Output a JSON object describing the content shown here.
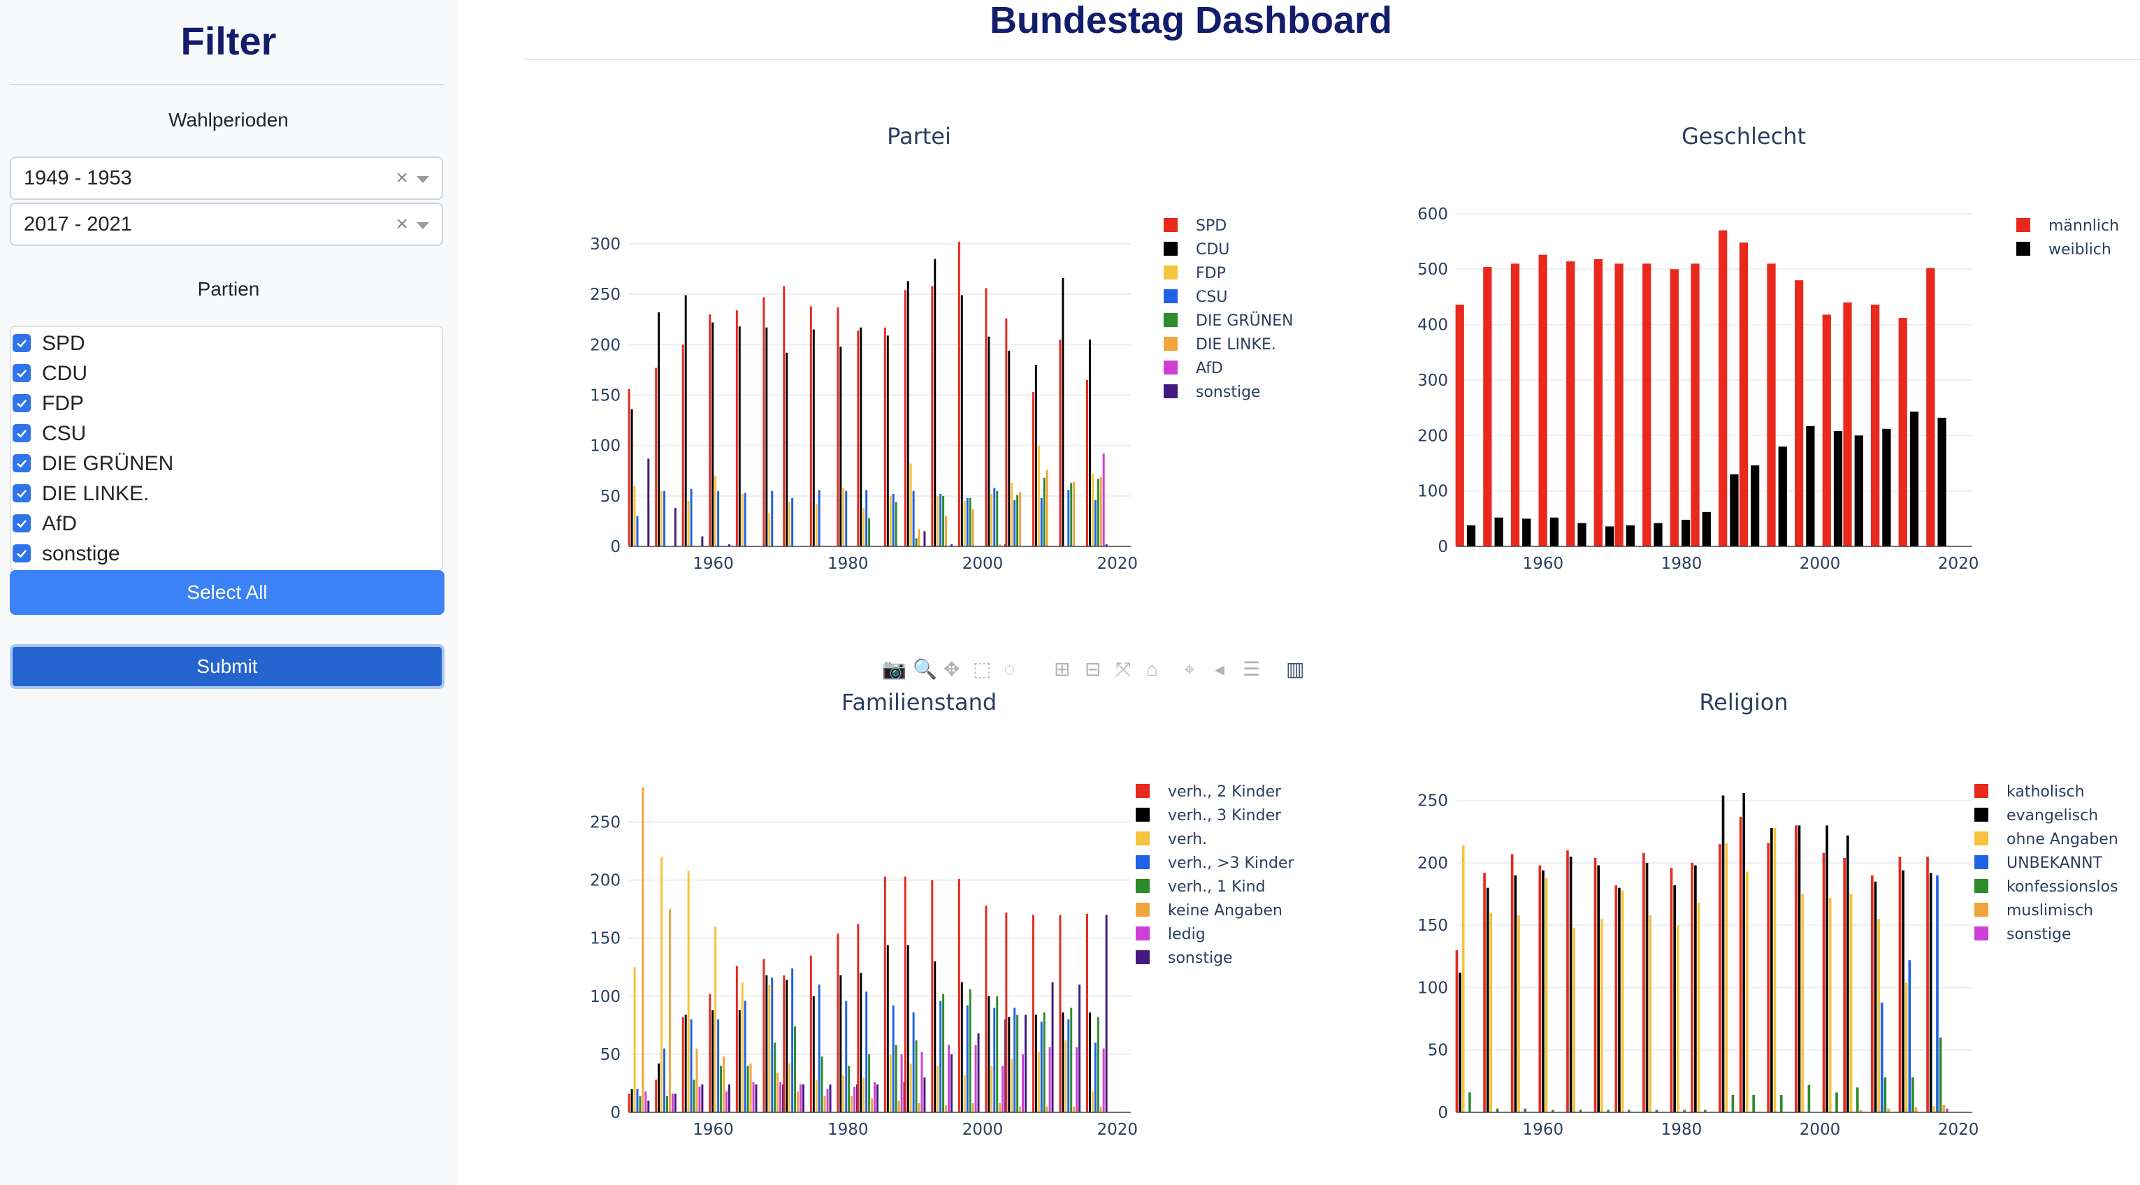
{
  "sidebar": {
    "title": "Filter",
    "wahl_label": "Wahlperioden",
    "periods": [
      {
        "value": "1949 - 1953",
        "clear": "×"
      },
      {
        "value": "2017 - 2021",
        "clear": "×"
      }
    ],
    "parties_label": "Partien",
    "parties": [
      "SPD",
      "CDU",
      "FDP",
      "CSU",
      "DIE GRÜNEN",
      "DIE LINKE.",
      "AfD",
      "sonstige"
    ],
    "select_all": "Select All",
    "submit": "Submit"
  },
  "header": {
    "title": "Bundestag Dashboard"
  },
  "modebar_icons": [
    "camera-icon",
    "zoom-icon",
    "pan-icon",
    "box-select-icon",
    "lasso-icon",
    "zoom-in-icon",
    "zoom-out-icon",
    "autoscale-icon",
    "reset-axes-icon",
    "spike-lines-icon",
    "hover-closest-icon",
    "hover-compare-icon",
    "plotly-logo-icon"
  ],
  "chart_data": [
    {
      "id": "partei",
      "type": "bar",
      "title": "Partei",
      "x": [
        1949,
        1953,
        1957,
        1961,
        1965,
        1969,
        1972,
        1976,
        1980,
        1983,
        1987,
        1990,
        1994,
        1998,
        2002,
        2005,
        2009,
        2013,
        2017
      ],
      "xticks": [
        1960,
        1980,
        2000,
        2020
      ],
      "ylim": [
        0,
        320
      ],
      "yticks": [
        0,
        50,
        100,
        150,
        200,
        250,
        300
      ],
      "legend_position": "right",
      "series": [
        {
          "name": "SPD",
          "color": "#e8291c",
          "values": [
            156,
            177,
            200,
            230,
            234,
            247,
            258,
            238,
            237,
            214,
            217,
            254,
            258,
            302,
            256,
            226,
            153,
            205,
            165
          ]
        },
        {
          "name": "CDU",
          "color": "#000000",
          "values": [
            136,
            232,
            249,
            222,
            218,
            217,
            192,
            215,
            198,
            217,
            209,
            263,
            285,
            249,
            208,
            194,
            180,
            266,
            205
          ]
        },
        {
          "name": "FDP",
          "color": "#f5c33c",
          "values": [
            60,
            55,
            45,
            70,
            52,
            33,
            44,
            42,
            58,
            38,
            50,
            82,
            50,
            45,
            52,
            63,
            100,
            0,
            72
          ]
        },
        {
          "name": "CSU",
          "color": "#1f62e8",
          "values": [
            30,
            55,
            57,
            55,
            53,
            55,
            48,
            56,
            55,
            56,
            52,
            55,
            52,
            48,
            58,
            46,
            48,
            56,
            46
          ]
        },
        {
          "name": "DIE GRÜNEN",
          "color": "#2e8b2a",
          "values": [
            0,
            0,
            0,
            0,
            0,
            0,
            0,
            0,
            0,
            28,
            44,
            8,
            50,
            48,
            55,
            51,
            68,
            63,
            67
          ]
        },
        {
          "name": "DIE LINKE.",
          "color": "#f0a53c",
          "values": [
            0,
            0,
            0,
            0,
            0,
            0,
            0,
            0,
            0,
            0,
            0,
            17,
            30,
            37,
            2,
            54,
            76,
            64,
            69
          ]
        },
        {
          "name": "AfD",
          "color": "#cf3fd6",
          "values": [
            0,
            0,
            0,
            0,
            0,
            0,
            0,
            0,
            0,
            0,
            0,
            0,
            0,
            0,
            0,
            0,
            0,
            0,
            92
          ]
        },
        {
          "name": "sonstige",
          "color": "#45197f",
          "values": [
            87,
            38,
            10,
            2,
            0,
            0,
            0,
            0,
            0,
            0,
            0,
            15,
            2,
            0,
            2,
            0,
            0,
            0,
            2
          ]
        }
      ]
    },
    {
      "id": "geschlecht",
      "type": "bar",
      "title": "Geschlecht",
      "x": [
        1949,
        1953,
        1957,
        1961,
        1965,
        1969,
        1972,
        1976,
        1980,
        1983,
        1987,
        1990,
        1994,
        1998,
        2002,
        2005,
        2009,
        2013,
        2017
      ],
      "xticks": [
        1960,
        1980,
        2000,
        2020
      ],
      "ylim": [
        0,
        620
      ],
      "yticks": [
        0,
        100,
        200,
        300,
        400,
        500,
        600
      ],
      "legend_position": "right",
      "series": [
        {
          "name": "männlich",
          "color": "#e8291c",
          "values": [
            436,
            504,
            510,
            526,
            514,
            518,
            510,
            510,
            500,
            510,
            570,
            548,
            510,
            480,
            418,
            440,
            436,
            412,
            502
          ]
        },
        {
          "name": "weiblich",
          "color": "#000000",
          "values": [
            38,
            52,
            50,
            52,
            42,
            36,
            38,
            42,
            48,
            62,
            130,
            146,
            180,
            217,
            208,
            200,
            212,
            243,
            232
          ]
        }
      ]
    },
    {
      "id": "familienstand",
      "type": "bar",
      "title": "Familienstand",
      "x": [
        1949,
        1953,
        1957,
        1961,
        1965,
        1969,
        1972,
        1976,
        1980,
        1983,
        1987,
        1990,
        1994,
        1998,
        2002,
        2005,
        2009,
        2013,
        2017
      ],
      "xticks": [
        1960,
        1980,
        2000,
        2020
      ],
      "ylim": [
        0,
        290
      ],
      "yticks": [
        0,
        50,
        100,
        150,
        200,
        250
      ],
      "legend_position": "right",
      "series": [
        {
          "name": "verh., 2 Kinder",
          "color": "#e8291c",
          "values": [
            16,
            28,
            82,
            102,
            126,
            132,
            118,
            135,
            154,
            162,
            203,
            203,
            200,
            201,
            178,
            172,
            170,
            170,
            171
          ]
        },
        {
          "name": "verh., 3 Kinder",
          "color": "#000000",
          "values": [
            20,
            42,
            84,
            88,
            88,
            118,
            114,
            100,
            118,
            120,
            144,
            144,
            130,
            112,
            100,
            82,
            84,
            86,
            86
          ]
        },
        {
          "name": "verh.",
          "color": "#f5c33c",
          "values": [
            125,
            220,
            208,
            160,
            112,
            110,
            42,
            28,
            32,
            30,
            50,
            42,
            40,
            32,
            40,
            46,
            52,
            62,
            18
          ]
        },
        {
          "name": "verh., >3 Kinder",
          "color": "#1f62e8",
          "values": [
            20,
            55,
            80,
            80,
            96,
            116,
            124,
            110,
            96,
            104,
            92,
            86,
            96,
            92,
            90,
            90,
            78,
            80,
            60
          ]
        },
        {
          "name": "verh., 1 Kind",
          "color": "#2e8b2a",
          "values": [
            14,
            14,
            28,
            40,
            40,
            60,
            74,
            48,
            40,
            50,
            58,
            62,
            102,
            106,
            100,
            84,
            86,
            90,
            82
          ]
        },
        {
          "name": "keine Angaben",
          "color": "#f0a53c",
          "values": [
            280,
            175,
            55,
            48,
            42,
            34,
            18,
            14,
            14,
            12,
            10,
            8,
            6,
            8,
            8,
            5,
            5,
            5,
            5
          ]
        },
        {
          "name": "ledig",
          "color": "#cf3fd6",
          "values": [
            18,
            16,
            22,
            18,
            26,
            26,
            24,
            20,
            22,
            26,
            50,
            52,
            58,
            58,
            40,
            50,
            56,
            56,
            55
          ]
        },
        {
          "name": "sonstige",
          "color": "#45197f",
          "values": [
            10,
            16,
            24,
            24,
            24,
            24,
            24,
            24,
            24,
            24,
            26,
            30,
            50,
            68,
            80,
            84,
            112,
            110,
            170
          ]
        }
      ]
    },
    {
      "id": "religion",
      "type": "bar",
      "title": "Religion",
      "x": [
        1949,
        1953,
        1957,
        1961,
        1965,
        1969,
        1972,
        1976,
        1980,
        1983,
        1987,
        1990,
        1994,
        1998,
        2002,
        2005,
        2009,
        2013,
        2017
      ],
      "xticks": [
        1960,
        1980,
        2000,
        2020
      ],
      "ylim": [
        0,
        270
      ],
      "yticks": [
        0,
        50,
        100,
        150,
        200,
        250
      ],
      "legend_position": "right",
      "series": [
        {
          "name": "katholisch",
          "color": "#e8291c",
          "values": [
            130,
            192,
            207,
            198,
            210,
            204,
            182,
            208,
            196,
            200,
            215,
            237,
            216,
            230,
            208,
            204,
            190,
            205,
            205
          ]
        },
        {
          "name": "evangelisch",
          "color": "#000000",
          "values": [
            112,
            180,
            190,
            194,
            205,
            198,
            180,
            200,
            182,
            198,
            254,
            256,
            228,
            230,
            230,
            222,
            185,
            194,
            192
          ]
        },
        {
          "name": "ohne Angaben",
          "color": "#f5c33c",
          "values": [
            214,
            160,
            158,
            188,
            148,
            155,
            178,
            158,
            150,
            168,
            216,
            193,
            228,
            175,
            172,
            175,
            155,
            104,
            5
          ]
        },
        {
          "name": "UNBEKANNT",
          "color": "#1f62e8",
          "values": [
            0,
            0,
            0,
            0,
            0,
            0,
            0,
            0,
            0,
            0,
            0,
            0,
            0,
            0,
            0,
            0,
            88,
            122,
            190
          ]
        },
        {
          "name": "konfessionslos",
          "color": "#2e8b2a",
          "values": [
            16,
            3,
            3,
            2,
            2,
            2,
            2,
            2,
            2,
            2,
            14,
            14,
            14,
            22,
            16,
            20,
            28,
            28,
            60
          ]
        },
        {
          "name": "muslimisch",
          "color": "#f0a53c",
          "values": [
            0,
            0,
            0,
            0,
            0,
            0,
            0,
            0,
            0,
            0,
            0,
            0,
            0,
            0,
            0,
            2,
            3,
            4,
            6
          ]
        },
        {
          "name": "sonstige",
          "color": "#cf3fd6",
          "values": [
            0,
            0,
            0,
            0,
            0,
            0,
            0,
            0,
            0,
            0,
            0,
            0,
            0,
            0,
            0,
            0,
            0,
            0,
            3
          ]
        }
      ]
    }
  ]
}
